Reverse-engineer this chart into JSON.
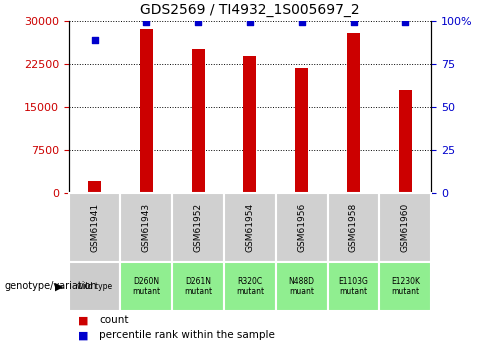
{
  "title": "GDS2569 / TI4932_1S005697_2",
  "samples": [
    "GSM61941",
    "GSM61943",
    "GSM61952",
    "GSM61954",
    "GSM61956",
    "GSM61958",
    "GSM61960"
  ],
  "genotype_labels": [
    "wild type",
    "D260N\nmutant",
    "D261N\nmutant",
    "R320C\nmutant",
    "N488D\nmuant",
    "E1103G\nmutant",
    "E1230K\nmutant"
  ],
  "counts": [
    2200,
    28500,
    25000,
    23800,
    21700,
    27800,
    18000
  ],
  "percentile_ranks": [
    89,
    99,
    99,
    99,
    99,
    99,
    99
  ],
  "bar_color": "#cc0000",
  "dot_color": "#0000cc",
  "ylim_left": [
    0,
    30000
  ],
  "ylim_right": [
    0,
    100
  ],
  "yticks_left": [
    0,
    7500,
    15000,
    22500,
    30000
  ],
  "yticks_right": [
    0,
    25,
    50,
    75,
    100
  ],
  "ytick_labels_right": [
    "0",
    "25",
    "50",
    "75",
    "100%"
  ],
  "wild_type_color": "#cccccc",
  "mutant_color": "#90ee90",
  "legend_count_color": "#cc0000",
  "legend_pct_color": "#0000cc",
  "bar_width": 0.25
}
